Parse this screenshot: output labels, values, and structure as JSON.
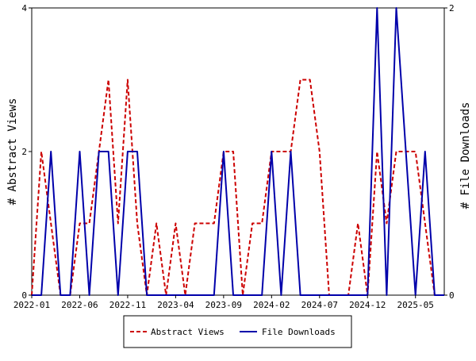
{
  "chart_data": {
    "type": "line",
    "xlabel": "",
    "y_left_label": "# Abstract Views",
    "y_right_label": "# File Downloads",
    "y_left_lim": [
      0,
      4
    ],
    "y_right_lim": [
      0,
      2
    ],
    "y_left_ticks": [
      "0",
      "2",
      "4"
    ],
    "y_right_ticks": [
      "0",
      "2"
    ],
    "x_ticks": [
      "2022-01",
      "2022-06",
      "2022-11",
      "2023-04",
      "2023-09",
      "2024-02",
      "2024-07",
      "2024-12",
      "2025-05"
    ],
    "legend_position": "bottom-center",
    "grid": false,
    "x": [
      "2022-01",
      "2022-02",
      "2022-03",
      "2022-04",
      "2022-05",
      "2022-06",
      "2022-07",
      "2022-08",
      "2022-09",
      "2022-10",
      "2022-11",
      "2022-12",
      "2023-01",
      "2023-02",
      "2023-03",
      "2023-04",
      "2023-05",
      "2023-06",
      "2023-07",
      "2023-08",
      "2023-09",
      "2023-10",
      "2023-11",
      "2023-12",
      "2024-01",
      "2024-02",
      "2024-03",
      "2024-04",
      "2024-05",
      "2024-06",
      "2024-07",
      "2024-08",
      "2024-09",
      "2024-10",
      "2024-11",
      "2024-12",
      "2025-01",
      "2025-02",
      "2025-03",
      "2025-04",
      "2025-05",
      "2025-06",
      "2025-07",
      "2025-08"
    ],
    "series": [
      {
        "name": "Abstract Views",
        "axis": "left",
        "color": "#cc0000",
        "dash": "dashed",
        "values": [
          0,
          2,
          1,
          0,
          0,
          1,
          1,
          2,
          3,
          1,
          3,
          1,
          0,
          1,
          0,
          1,
          0,
          1,
          1,
          1,
          2,
          2,
          0,
          1,
          1,
          2,
          2,
          2,
          3,
          3,
          2,
          0,
          0,
          0,
          1,
          0,
          2,
          1,
          2,
          2,
          2,
          1,
          0,
          0
        ]
      },
      {
        "name": "File Downloads",
        "axis": "right",
        "color": "#0000aa",
        "dash": "solid",
        "values": [
          0,
          0,
          1,
          0,
          0,
          1,
          0,
          1,
          1,
          0,
          1,
          1,
          0,
          0,
          0,
          0,
          0,
          0,
          0,
          0,
          1,
          0,
          0,
          0,
          0,
          1,
          0,
          1,
          0,
          0,
          0,
          0,
          0,
          0,
          0,
          0,
          2,
          0,
          2,
          1,
          0,
          1,
          0,
          0
        ]
      }
    ]
  }
}
